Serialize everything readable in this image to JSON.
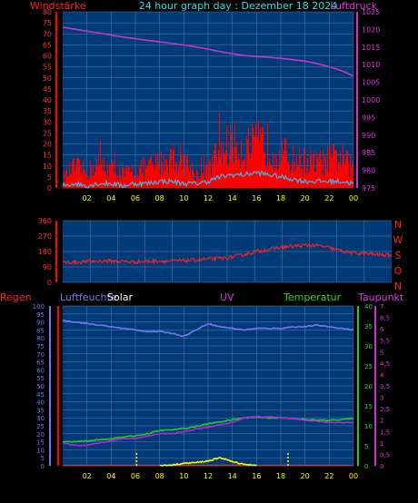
{
  "header": {
    "title": "24 hour graph day : Dezember 18 2024"
  },
  "panel1": {
    "left_label": "Windstärke",
    "right_label": "Luftdruck"
  },
  "panel2": {
    "compass": [
      "N",
      "W",
      "S",
      "O",
      "N"
    ]
  },
  "panel3": {
    "labels": {
      "regen": "Regen",
      "luftfeuchte": "Luftfeuchte",
      "solar": "Solar",
      "uv": "UV",
      "temperatur": "Temperatur",
      "taupunkt": "Taupunkt"
    }
  },
  "colors": {
    "background": "#000000",
    "plot": "#003a78",
    "grid": "#5d7fa6",
    "wind": "#ff0000",
    "wind_avg": "#33bbee",
    "wind_calm": "#e8f4e8",
    "pressure": "#cc33cc",
    "direction": "#ff2020",
    "humidity": "#7777ee",
    "temperature": "#22cc22",
    "dewpoint": "#bb22dd",
    "solar": "#ffff00",
    "rain": "#cc3333"
  },
  "chart_data": [
    {
      "type": "area",
      "panel": "wind-pressure",
      "x_ticks": [
        "02",
        "04",
        "06",
        "08",
        "10",
        "12",
        "14",
        "16",
        "18",
        "20",
        "22",
        "00"
      ],
      "xlim_hours": [
        0,
        24
      ],
      "y_left": {
        "label": "Windstärke",
        "lim": [
          0,
          80
        ],
        "ticks": [
          "0",
          "5",
          "10",
          "15",
          "20",
          "25",
          "30",
          "35",
          "40",
          "45",
          "50",
          "55",
          "60",
          "65",
          "70",
          "75",
          "80"
        ]
      },
      "y_right": {
        "label": "Luftdruck",
        "lim": [
          975,
          1025
        ],
        "ticks": [
          "975",
          "980",
          "985",
          "990",
          "995",
          "1000",
          "1005",
          "1010",
          "1015",
          "1020",
          "1025"
        ]
      },
      "series": [
        {
          "key": "gust",
          "x": [
            0,
            1,
            2,
            3,
            4,
            5,
            6,
            7,
            8,
            9,
            10,
            11,
            12,
            13,
            14,
            15,
            16,
            17,
            18,
            19,
            20,
            21,
            22,
            23,
            24
          ],
          "values": [
            6,
            12,
            9,
            14,
            11,
            8,
            10,
            12,
            14,
            18,
            16,
            8,
            10,
            22,
            25,
            22,
            25,
            24,
            20,
            16,
            15,
            14,
            16,
            18,
            10
          ]
        },
        {
          "key": "avg",
          "x": [
            0,
            1,
            2,
            3,
            4,
            5,
            6,
            7,
            8,
            9,
            10,
            11,
            12,
            13,
            14,
            15,
            16,
            17,
            18,
            19,
            20,
            21,
            22,
            23,
            24
          ],
          "values": [
            1,
            2,
            1,
            2,
            2,
            1,
            2,
            2,
            3,
            3,
            2,
            2,
            3,
            5,
            6,
            6,
            7,
            6,
            5,
            4,
            3,
            3,
            3,
            3,
            2
          ]
        },
        {
          "key": "pressure",
          "x": [
            0,
            1,
            2,
            3,
            4,
            5,
            6,
            7,
            8,
            9,
            10,
            11,
            12,
            13,
            14,
            15,
            16,
            17,
            18,
            19,
            20,
            21,
            22,
            23,
            24
          ],
          "values": [
            1020.6,
            1020.1,
            1019.5,
            1019.0,
            1018.4,
            1017.8,
            1017.4,
            1016.9,
            1016.5,
            1016.0,
            1015.6,
            1015.0,
            1014.4,
            1013.7,
            1013.1,
            1012.6,
            1012.3,
            1012.1,
            1011.8,
            1011.4,
            1011.0,
            1010.3,
            1009.4,
            1008.3,
            1006.8
          ]
        }
      ]
    },
    {
      "type": "line",
      "panel": "wind-direction",
      "xlim_hours": [
        0,
        24
      ],
      "y": {
        "lim": [
          0,
          360
        ],
        "ticks": [
          "0",
          "90",
          "180",
          "270",
          "360"
        ]
      },
      "series": [
        {
          "key": "direction",
          "x": [
            0,
            1,
            2,
            3,
            4,
            5,
            6,
            7,
            8,
            9,
            10,
            11,
            12,
            13,
            14,
            15,
            16,
            17,
            18,
            19,
            20,
            21,
            22,
            23,
            24
          ],
          "values": [
            115,
            118,
            122,
            125,
            124,
            120,
            122,
            125,
            124,
            128,
            132,
            138,
            142,
            158,
            178,
            192,
            205,
            212,
            218,
            210,
            190,
            172,
            168,
            162,
            158
          ]
        }
      ]
    },
    {
      "type": "line",
      "panel": "climate",
      "x_ticks": [
        "02",
        "04",
        "06",
        "08",
        "10",
        "12",
        "14",
        "16",
        "18",
        "20",
        "22",
        "00"
      ],
      "xlim_hours": [
        0,
        24
      ],
      "y_left": {
        "lim": [
          0,
          100
        ],
        "ticks": [
          "0",
          "5",
          "10",
          "15",
          "20",
          "25",
          "30",
          "35",
          "40",
          "45",
          "50",
          "55",
          "60",
          "65",
          "70",
          "75",
          "80",
          "85",
          "90",
          "95",
          "100"
        ]
      },
      "y_right_temp": {
        "lim": [
          0,
          40
        ],
        "ticks": [
          "0",
          "5",
          "10",
          "15",
          "20",
          "25",
          "30",
          "35",
          "40"
        ]
      },
      "y_right_dew": {
        "lim": [
          0,
          7
        ],
        "ticks": [
          "0",
          "0,5",
          "1",
          "1,5",
          "2",
          "2,5",
          "3",
          "3,5",
          "4",
          "4,5",
          "5",
          "5,5",
          "6",
          "6,5",
          "7"
        ]
      },
      "series": [
        {
          "key": "humidity",
          "x": [
            0,
            1,
            2,
            3,
            4,
            5,
            6,
            7,
            8,
            9,
            10,
            11,
            12,
            13,
            14,
            15,
            16,
            17,
            18,
            19,
            20,
            21,
            22,
            23,
            24
          ],
          "values": [
            91,
            90,
            89,
            88,
            87,
            86,
            85,
            84,
            84,
            83,
            81,
            85,
            89,
            87,
            86,
            85,
            86,
            86,
            86,
            87,
            87,
            88,
            87,
            86,
            85
          ]
        },
        {
          "key": "temperature",
          "x": [
            0,
            1,
            2,
            3,
            4,
            5,
            6,
            7,
            8,
            9,
            10,
            11,
            12,
            13,
            14,
            15,
            16,
            17,
            18,
            19,
            20,
            21,
            22,
            23,
            24
          ],
          "values": [
            6,
            6,
            6.2,
            6.5,
            6.8,
            7.2,
            7.5,
            8,
            8.8,
            9,
            9.3,
            9.8,
            10.5,
            11,
            11.5,
            12,
            12.2,
            12,
            12,
            11.8,
            11.6,
            11.4,
            11.4,
            11.6,
            11.8
          ]
        },
        {
          "key": "dewpoint",
          "x": [
            0,
            1,
            2,
            3,
            4,
            5,
            6,
            7,
            8,
            9,
            10,
            11,
            12,
            13,
            14,
            15,
            16,
            17,
            18,
            19,
            20,
            21,
            22,
            23,
            24
          ],
          "values": [
            1.0,
            0.9,
            0.9,
            1.0,
            1.1,
            1.2,
            1.2,
            1.3,
            1.4,
            1.4,
            1.5,
            1.6,
            1.7,
            1.8,
            1.9,
            2.1,
            2.15,
            2.15,
            2.1,
            2.05,
            2.0,
            1.95,
            1.9,
            1.9,
            1.9
          ]
        },
        {
          "key": "solar",
          "x": [
            8,
            9,
            10,
            11,
            11.5,
            12,
            12.5,
            13,
            13.5,
            14,
            15,
            16
          ],
          "values": [
            0,
            0.5,
            1.5,
            2.0,
            2.5,
            3.0,
            4.0,
            5.0,
            4.0,
            2.5,
            1.0,
            0
          ]
        },
        {
          "key": "rain",
          "x": [
            0,
            24
          ],
          "values": [
            0.2,
            0.2
          ]
        }
      ]
    }
  ]
}
